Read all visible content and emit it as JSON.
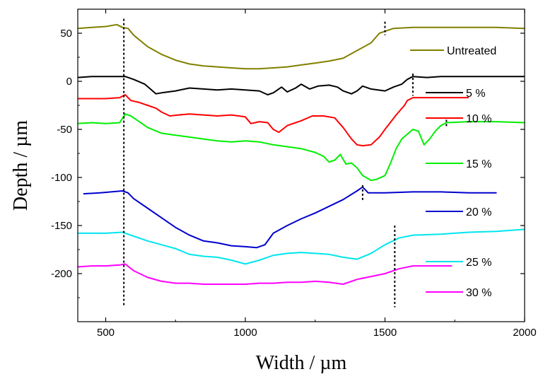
{
  "chart_data": {
    "type": "line",
    "title": "",
    "xlabel": "Width / µm",
    "ylabel": "Depth / µm",
    "xlim": [
      400,
      2000
    ],
    "ylim": [
      -250,
      75
    ],
    "x_ticks": [
      500,
      1000,
      1500,
      2000
    ],
    "y_ticks": [
      50,
      0,
      -50,
      -100,
      -150,
      -200
    ],
    "grid": false,
    "legend": "right",
    "series": [
      {
        "name": "Untreated",
        "color": "#808000",
        "points": [
          [
            400,
            55
          ],
          [
            450,
            56
          ],
          [
            500,
            57
          ],
          [
            540,
            59
          ],
          [
            560,
            56
          ],
          [
            580,
            55
          ],
          [
            600,
            48
          ],
          [
            650,
            36
          ],
          [
            700,
            28
          ],
          [
            750,
            22
          ],
          [
            800,
            18
          ],
          [
            850,
            16
          ],
          [
            900,
            15
          ],
          [
            950,
            14
          ],
          [
            1000,
            13
          ],
          [
            1050,
            13
          ],
          [
            1100,
            14
          ],
          [
            1150,
            15
          ],
          [
            1200,
            17
          ],
          [
            1250,
            19
          ],
          [
            1300,
            21
          ],
          [
            1350,
            24
          ],
          [
            1400,
            32
          ],
          [
            1450,
            40
          ],
          [
            1480,
            50
          ],
          [
            1500,
            52
          ],
          [
            1530,
            55
          ],
          [
            1600,
            56
          ],
          [
            1700,
            56
          ],
          [
            1800,
            56
          ],
          [
            1900,
            56
          ],
          [
            2000,
            55
          ]
        ]
      },
      {
        "name": "5 %",
        "color": "#000000",
        "points": [
          [
            400,
            4
          ],
          [
            450,
            5
          ],
          [
            500,
            5
          ],
          [
            550,
            5
          ],
          [
            570,
            5
          ],
          [
            600,
            2
          ],
          [
            640,
            -3
          ],
          [
            660,
            -8
          ],
          [
            680,
            -13
          ],
          [
            700,
            -12
          ],
          [
            750,
            -10
          ],
          [
            800,
            -7
          ],
          [
            850,
            -8
          ],
          [
            900,
            -9
          ],
          [
            950,
            -8
          ],
          [
            1000,
            -9
          ],
          [
            1050,
            -10
          ],
          [
            1080,
            -14
          ],
          [
            1100,
            -12
          ],
          [
            1130,
            -6
          ],
          [
            1150,
            -11
          ],
          [
            1180,
            -7
          ],
          [
            1200,
            -3
          ],
          [
            1230,
            -8
          ],
          [
            1260,
            -5
          ],
          [
            1300,
            -4
          ],
          [
            1330,
            -6
          ],
          [
            1350,
            -10
          ],
          [
            1380,
            -13
          ],
          [
            1400,
            -10
          ],
          [
            1420,
            -5
          ],
          [
            1450,
            -8
          ],
          [
            1500,
            -10
          ],
          [
            1530,
            -6
          ],
          [
            1560,
            -3
          ],
          [
            1580,
            2
          ],
          [
            1600,
            5
          ],
          [
            1650,
            4
          ],
          [
            1700,
            5
          ],
          [
            1800,
            5
          ],
          [
            1900,
            5
          ],
          [
            2000,
            5
          ]
        ]
      },
      {
        "name": "10 %",
        "color": "#ff0000",
        "points": [
          [
            400,
            -18
          ],
          [
            450,
            -18
          ],
          [
            500,
            -18
          ],
          [
            550,
            -17
          ],
          [
            570,
            -14
          ],
          [
            590,
            -20
          ],
          [
            620,
            -22
          ],
          [
            650,
            -25
          ],
          [
            680,
            -28
          ],
          [
            700,
            -32
          ],
          [
            730,
            -36
          ],
          [
            760,
            -35
          ],
          [
            800,
            -34
          ],
          [
            850,
            -35
          ],
          [
            900,
            -36
          ],
          [
            950,
            -35
          ],
          [
            1000,
            -37
          ],
          [
            1020,
            -44
          ],
          [
            1050,
            -42
          ],
          [
            1080,
            -43
          ],
          [
            1100,
            -50
          ],
          [
            1120,
            -53
          ],
          [
            1150,
            -46
          ],
          [
            1180,
            -43
          ],
          [
            1200,
            -41
          ],
          [
            1240,
            -36
          ],
          [
            1280,
            -36
          ],
          [
            1320,
            -38
          ],
          [
            1350,
            -48
          ],
          [
            1380,
            -60
          ],
          [
            1400,
            -66
          ],
          [
            1420,
            -67
          ],
          [
            1450,
            -66
          ],
          [
            1480,
            -58
          ],
          [
            1500,
            -50
          ],
          [
            1540,
            -35
          ],
          [
            1570,
            -25
          ],
          [
            1580,
            -20
          ],
          [
            1600,
            -17
          ],
          [
            1650,
            -17
          ],
          [
            1700,
            -17
          ],
          [
            1800,
            -17
          ]
        ]
      },
      {
        "name": "15 %",
        "color": "#00ee00",
        "points": [
          [
            400,
            -44
          ],
          [
            450,
            -43
          ],
          [
            500,
            -44
          ],
          [
            550,
            -43
          ],
          [
            570,
            -34
          ],
          [
            590,
            -36
          ],
          [
            620,
            -42
          ],
          [
            650,
            -48
          ],
          [
            700,
            -54
          ],
          [
            750,
            -56
          ],
          [
            800,
            -58
          ],
          [
            850,
            -60
          ],
          [
            900,
            -62
          ],
          [
            950,
            -63
          ],
          [
            1000,
            -62
          ],
          [
            1050,
            -63
          ],
          [
            1100,
            -66
          ],
          [
            1150,
            -68
          ],
          [
            1200,
            -70
          ],
          [
            1250,
            -74
          ],
          [
            1280,
            -78
          ],
          [
            1300,
            -84
          ],
          [
            1320,
            -82
          ],
          [
            1340,
            -76
          ],
          [
            1360,
            -86
          ],
          [
            1380,
            -85
          ],
          [
            1400,
            -90
          ],
          [
            1420,
            -98
          ],
          [
            1450,
            -103
          ],
          [
            1470,
            -102
          ],
          [
            1500,
            -98
          ],
          [
            1520,
            -85
          ],
          [
            1540,
            -70
          ],
          [
            1560,
            -60
          ],
          [
            1580,
            -55
          ],
          [
            1600,
            -50
          ],
          [
            1620,
            -52
          ],
          [
            1640,
            -66
          ],
          [
            1660,
            -60
          ],
          [
            1680,
            -52
          ],
          [
            1700,
            -46
          ],
          [
            1720,
            -43
          ],
          [
            1800,
            -42
          ],
          [
            1900,
            -42
          ],
          [
            2000,
            -43
          ]
        ]
      },
      {
        "name": "20 %",
        "color": "#0000cd",
        "points": [
          [
            420,
            -117
          ],
          [
            480,
            -116
          ],
          [
            520,
            -115
          ],
          [
            560,
            -114
          ],
          [
            580,
            -116
          ],
          [
            600,
            -122
          ],
          [
            650,
            -132
          ],
          [
            700,
            -142
          ],
          [
            750,
            -152
          ],
          [
            800,
            -160
          ],
          [
            850,
            -166
          ],
          [
            900,
            -168
          ],
          [
            950,
            -171
          ],
          [
            1000,
            -172
          ],
          [
            1040,
            -173
          ],
          [
            1070,
            -170
          ],
          [
            1100,
            -158
          ],
          [
            1150,
            -150
          ],
          [
            1200,
            -143
          ],
          [
            1250,
            -137
          ],
          [
            1300,
            -130
          ],
          [
            1350,
            -123
          ],
          [
            1400,
            -114
          ],
          [
            1420,
            -110
          ],
          [
            1440,
            -116
          ],
          [
            1500,
            -116
          ],
          [
            1600,
            -115
          ],
          [
            1700,
            -115
          ],
          [
            1800,
            -116
          ],
          [
            1900,
            -116
          ]
        ]
      },
      {
        "name": "25 %",
        "color": "#00e5ee",
        "points": [
          [
            400,
            -158
          ],
          [
            450,
            -158
          ],
          [
            500,
            -158
          ],
          [
            560,
            -157
          ],
          [
            600,
            -161
          ],
          [
            650,
            -166
          ],
          [
            700,
            -170
          ],
          [
            750,
            -174
          ],
          [
            800,
            -180
          ],
          [
            850,
            -182
          ],
          [
            900,
            -183
          ],
          [
            950,
            -186
          ],
          [
            1000,
            -190
          ],
          [
            1050,
            -186
          ],
          [
            1100,
            -181
          ],
          [
            1150,
            -179
          ],
          [
            1200,
            -178
          ],
          [
            1250,
            -179
          ],
          [
            1300,
            -180
          ],
          [
            1350,
            -183
          ],
          [
            1400,
            -185
          ],
          [
            1450,
            -179
          ],
          [
            1500,
            -170
          ],
          [
            1550,
            -163
          ],
          [
            1600,
            -160
          ],
          [
            1700,
            -159
          ],
          [
            1800,
            -157
          ],
          [
            1900,
            -156
          ],
          [
            2000,
            -154
          ]
        ]
      },
      {
        "name": "30 %",
        "color": "#ff00ff",
        "points": [
          [
            400,
            -193
          ],
          [
            450,
            -192
          ],
          [
            500,
            -192
          ],
          [
            550,
            -191
          ],
          [
            570,
            -190
          ],
          [
            600,
            -197
          ],
          [
            650,
            -204
          ],
          [
            700,
            -208
          ],
          [
            750,
            -210
          ],
          [
            800,
            -210
          ],
          [
            850,
            -211
          ],
          [
            900,
            -211
          ],
          [
            950,
            -211
          ],
          [
            1000,
            -211
          ],
          [
            1050,
            -210
          ],
          [
            1100,
            -210
          ],
          [
            1150,
            -209
          ],
          [
            1200,
            -209
          ],
          [
            1250,
            -208
          ],
          [
            1300,
            -209
          ],
          [
            1350,
            -211
          ],
          [
            1400,
            -206
          ],
          [
            1450,
            -203
          ],
          [
            1500,
            -200
          ],
          [
            1550,
            -195
          ],
          [
            1600,
            -192
          ],
          [
            1650,
            -192
          ],
          [
            1700,
            -192
          ],
          [
            1740,
            -192
          ]
        ]
      }
    ],
    "marker_lines": [
      {
        "x": 565,
        "y_from": 65,
        "y_to": -235
      },
      {
        "x": 1500,
        "y_from": 62,
        "y_to": 48
      },
      {
        "x": 1600,
        "y_from": 8,
        "y_to": -15
      },
      {
        "x": 1720,
        "y_from": -40,
        "y_to": -48
      },
      {
        "x": 1420,
        "y_from": -108,
        "y_to": -125
      },
      {
        "x": 1535,
        "y_from": -150,
        "y_to": -235
      }
    ]
  }
}
